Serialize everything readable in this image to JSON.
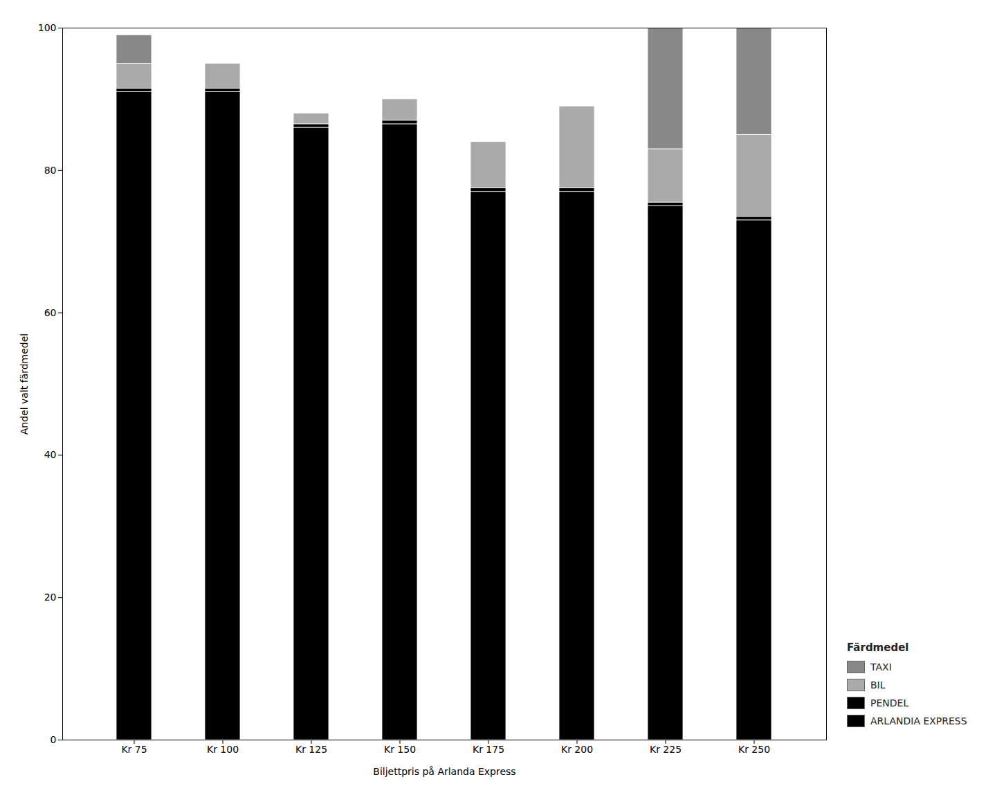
{
  "chart_data": {
    "type": "bar",
    "stacked": true,
    "categories": [
      "Kr 75",
      "Kr 100",
      "Kr 125",
      "Kr 150",
      "Kr 175",
      "Kr 200",
      "Kr 225",
      "Kr 250"
    ],
    "series": [
      {
        "name": "ARLANDIA EXPRESS",
        "color": "#000000",
        "values": [
          91.0,
          91.0,
          86.0,
          86.5,
          77.0,
          77.0,
          75.0,
          73.0
        ]
      },
      {
        "name": "PENDEL",
        "color": "#000000",
        "values": [
          0.5,
          0.5,
          0.5,
          0.5,
          0.5,
          0.5,
          0.5,
          0.5
        ]
      },
      {
        "name": "BIL",
        "color": "#aaaaaa",
        "values": [
          3.5,
          3.5,
          1.5,
          3.0,
          6.5,
          11.5,
          7.5,
          11.5
        ]
      },
      {
        "name": "TAXI",
        "color": "#888888",
        "values": [
          4.0,
          0.0,
          0.0,
          0.0,
          0.0,
          0.0,
          17.0,
          15.0
        ]
      }
    ],
    "ylim": [
      0,
      100
    ],
    "yticks": [
      0,
      20,
      40,
      60,
      80,
      100
    ],
    "ylabel": "Andel valt färdmedel",
    "xlabel": "Biljettpris på Arlanda Express",
    "legend": "lower right",
    "legend_title": "Färdmedel",
    "grid": false
  }
}
